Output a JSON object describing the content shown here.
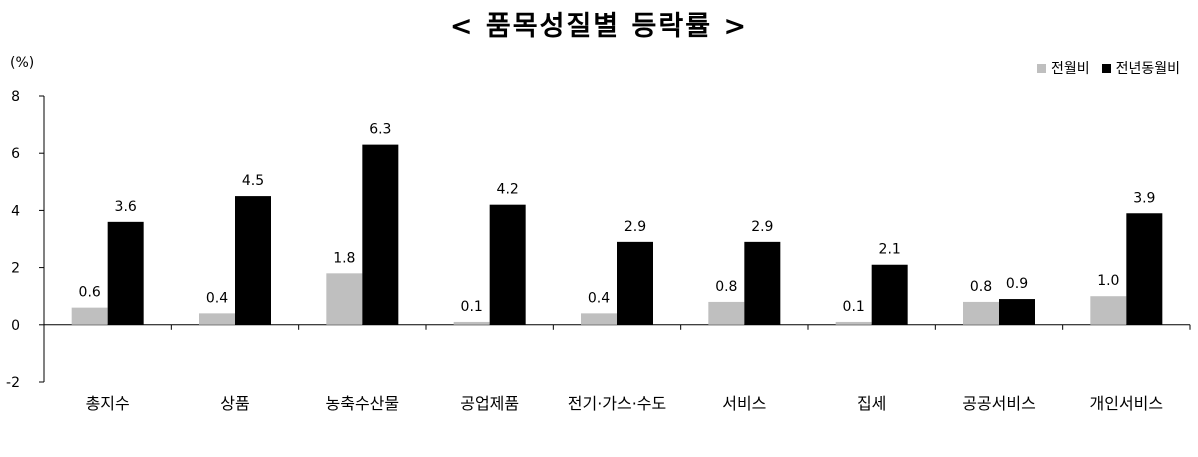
{
  "colors": {
    "monthly": "#bfbfbf",
    "yearly": "#000000",
    "axis": "#000000"
  },
  "chart_data": {
    "type": "bar",
    "title": "< 품목성질별 등락률 >",
    "unit_label": "(%)",
    "categories": [
      "총지수",
      "상품",
      "농축수산물",
      "공업제품",
      "전기·가스·수도",
      "서비스",
      "집세",
      "공공서비스",
      "개인서비스"
    ],
    "series": [
      {
        "name": "전월비",
        "values": [
          0.6,
          0.4,
          1.8,
          0.1,
          0.4,
          0.8,
          0.1,
          0.8,
          1.0
        ],
        "labels": [
          "0.6",
          "0.4",
          "1.8",
          "0.1",
          "0.4",
          "0.8",
          "0.1",
          "0.8",
          "1.0"
        ]
      },
      {
        "name": "전년동월비",
        "values": [
          3.6,
          4.5,
          6.3,
          4.2,
          2.9,
          2.9,
          2.1,
          0.9,
          3.9
        ],
        "labels": [
          "3.6",
          "4.5",
          "6.3",
          "4.2",
          "2.9",
          "2.9",
          "2.1",
          "0.9",
          "3.9"
        ]
      }
    ],
    "ylim": [
      -2,
      8
    ],
    "yticks": [
      8,
      6,
      4,
      2,
      0,
      -2
    ],
    "legend_position": "top-right",
    "grid": false
  }
}
